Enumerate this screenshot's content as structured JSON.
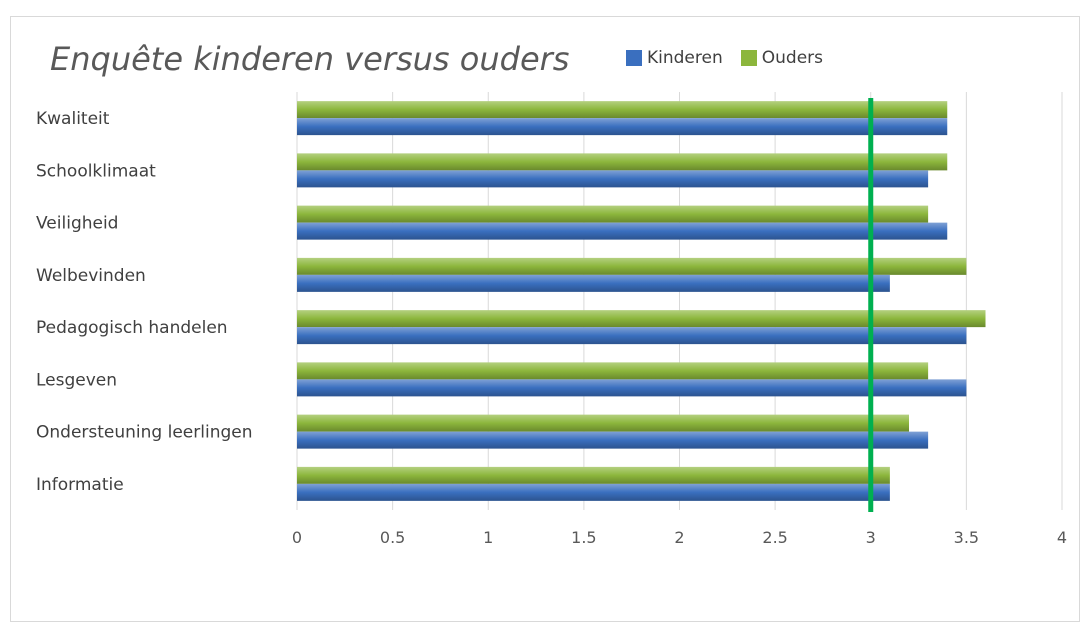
{
  "chart_data": {
    "type": "bar",
    "orientation": "horizontal",
    "title": "Enquête kinderen versus ouders",
    "xlabel": "",
    "ylabel": "",
    "categories": [
      "Kwaliteit",
      "Schoolklimaat",
      "Veiligheid",
      "Welbevinden",
      "Pedagogisch handelen",
      "Lesgeven",
      "Ondersteuning leerlingen",
      "Informatie"
    ],
    "series": [
      {
        "name": "Kinderen",
        "color": "#3a6fbf",
        "values": [
          3.4,
          3.3,
          3.4,
          3.1,
          3.5,
          3.5,
          3.3,
          3.1
        ]
      },
      {
        "name": "Ouders",
        "color": "#8cb63c",
        "values": [
          3.4,
          3.4,
          3.3,
          3.5,
          3.6,
          3.3,
          3.2,
          3.1
        ]
      }
    ],
    "xlim": [
      0,
      4
    ],
    "xticks": [
      "0",
      "0.5",
      "1",
      "1.5",
      "2",
      "2.5",
      "3",
      "3.5",
      "4"
    ],
    "reference_line": {
      "value": 3,
      "color": "#00b050"
    },
    "grid": true,
    "legend_position": "top"
  }
}
